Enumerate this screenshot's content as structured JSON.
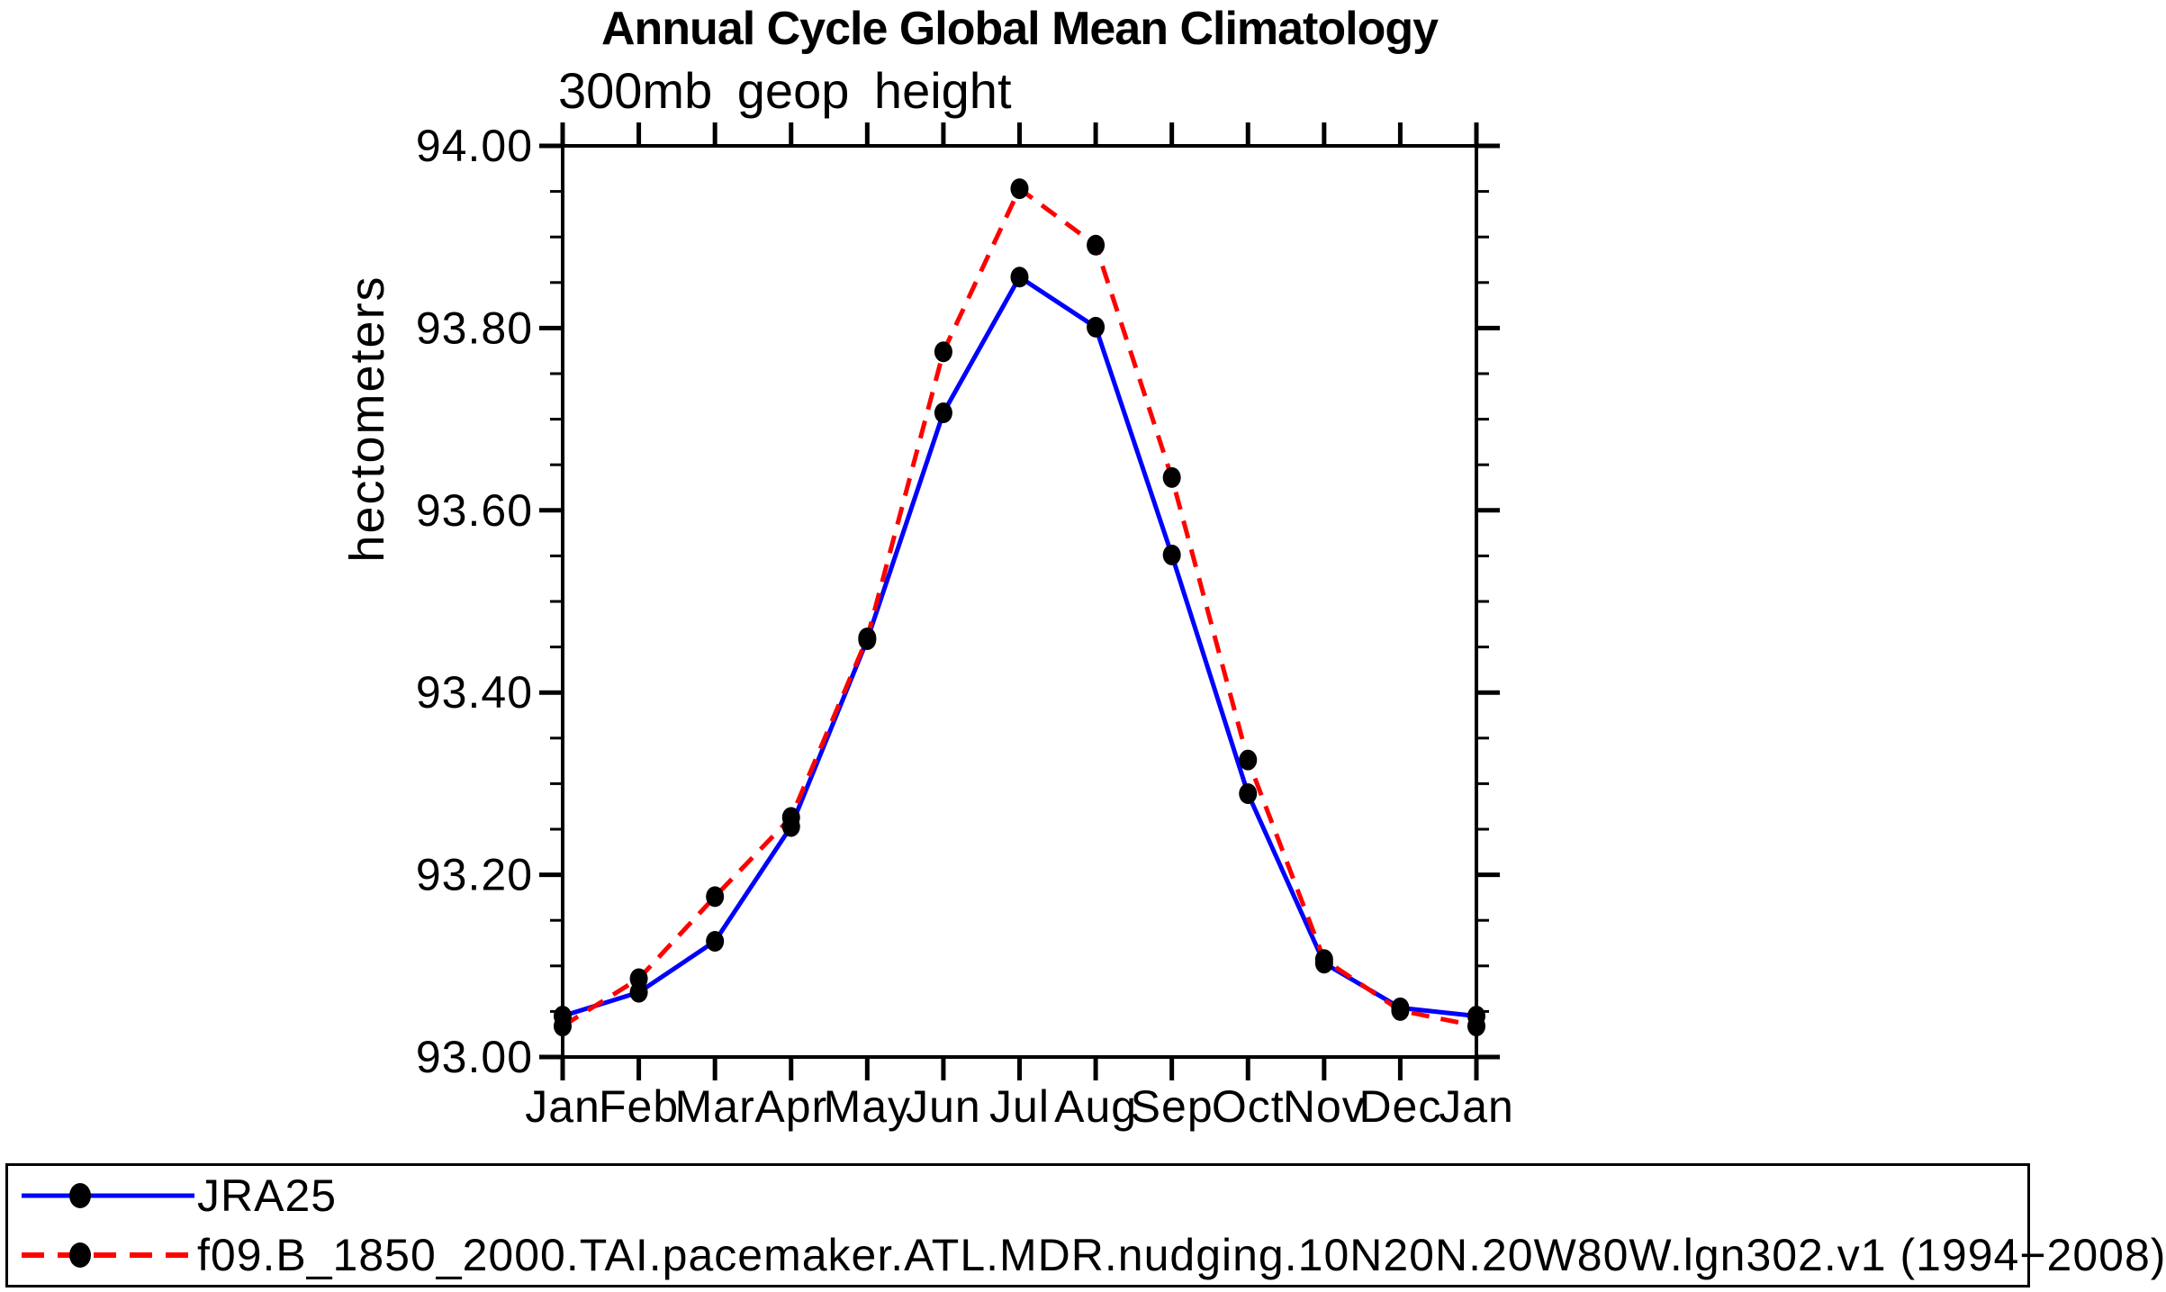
{
  "chart_data": {
    "type": "line",
    "title": "Annual Cycle Global Mean Climatology",
    "subtitle": "300mb geop height",
    "ylabel": "hectometers",
    "xlabel": "",
    "x_categories": [
      "Jan",
      "Feb",
      "Mar",
      "Apr",
      "May",
      "Jun",
      "Jul",
      "Aug",
      "Sep",
      "Oct",
      "Nov",
      "Dec",
      "Jan"
    ],
    "ylim": [
      93.0,
      94.0
    ],
    "ytick_step": 0.2,
    "yminor_step": 0.05,
    "ytick_labels": [
      "93.00",
      "93.20",
      "93.40",
      "93.60",
      "93.80",
      "94.00"
    ],
    "grid": false,
    "frame_color": "#000000",
    "legend_position": "bottom",
    "series": [
      {
        "name": "JRA25",
        "color": "#0000ff",
        "line_style": "solid",
        "marker": "filled-circle",
        "marker_color": "#000000",
        "values": [
          93.045,
          93.071,
          93.127,
          93.253,
          93.458,
          93.707,
          93.856,
          93.801,
          93.551,
          93.289,
          93.103,
          93.054,
          93.045
        ]
      },
      {
        "name": "f09.B_1850_2000.TAI.pacemaker.ATL.MDR.nudging.10N20N.20W80W.lgn302.v1 (1994−2008)",
        "color": "#ff0000",
        "line_style": "dashed",
        "marker": "filled-circle",
        "marker_color": "#000000",
        "values": [
          93.034,
          93.086,
          93.176,
          93.263,
          93.46,
          93.774,
          93.953,
          93.891,
          93.636,
          93.326,
          93.107,
          93.051,
          93.034
        ]
      }
    ]
  }
}
